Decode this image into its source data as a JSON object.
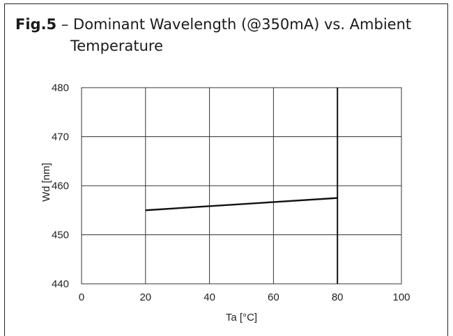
{
  "figure": {
    "number": "Fig.5",
    "separator": " – ",
    "title_line1": "Dominant Wavelength (@350mA) vs. Ambient",
    "title_line2": "Temperature"
  },
  "chart_data": {
    "type": "line",
    "xlabel": "Ta [°C]",
    "ylabel": "Wd [nm]",
    "xlim": [
      0,
      100
    ],
    "ylim": [
      440,
      480
    ],
    "x_ticks": [
      0,
      20,
      40,
      60,
      80,
      100
    ],
    "y_ticks": [
      440,
      450,
      460,
      470,
      480
    ],
    "grid": true,
    "series": [
      {
        "x": [
          20,
          80
        ],
        "values": [
          455.0,
          457.5
        ]
      }
    ],
    "colors": {
      "line": "#111111",
      "grid": "#333333"
    }
  }
}
